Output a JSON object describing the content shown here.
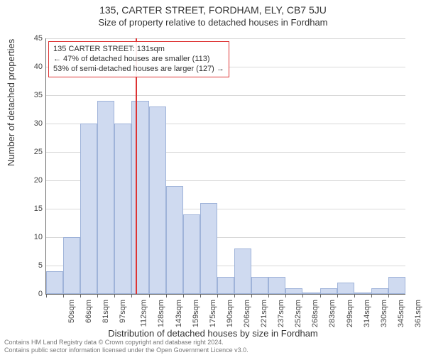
{
  "title": "135, CARTER STREET, FORDHAM, ELY, CB7 5JU",
  "subtitle": "Size of property relative to detached houses in Fordham",
  "yaxis_label": "Number of detached properties",
  "xaxis_label": "Distribution of detached houses by size in Fordham",
  "legend": {
    "line1": "135 CARTER STREET: 131sqm",
    "line2": "← 47% of detached houses are smaller (113)",
    "line3": "53% of semi-detached houses are larger (127) →"
  },
  "chart": {
    "type": "histogram",
    "ylim": [
      0,
      45
    ],
    "ytick_step": 5,
    "x_start": 50,
    "x_step": 15.5,
    "x_count": 21,
    "x_labels": [
      "50sqm",
      "66sqm",
      "81sqm",
      "97sqm",
      "112sqm",
      "128sqm",
      "143sqm",
      "159sqm",
      "175sqm",
      "190sqm",
      "206sqm",
      "221sqm",
      "237sqm",
      "252sqm",
      "268sqm",
      "283sqm",
      "299sqm",
      "314sqm",
      "330sqm",
      "345sqm",
      "361sqm"
    ],
    "values": [
      4,
      10,
      30,
      34,
      30,
      34,
      33,
      19,
      14,
      16,
      3,
      8,
      3,
      3,
      1,
      0,
      1,
      2,
      0,
      1,
      3
    ],
    "bar_color": "#cfdaf0",
    "bar_border": "#9fb3d9",
    "grid_color": "#d9d9d9",
    "background_color": "#ffffff",
    "marker_value": 131,
    "marker_color": "#d33",
    "title_fontsize": 14,
    "subtitle_fontsize": 13,
    "tick_fontsize": 11
  },
  "footer": {
    "line1": "Contains HM Land Registry data © Crown copyright and database right 2024.",
    "line2": "Contains public sector information licensed under the Open Government Licence v3.0."
  }
}
